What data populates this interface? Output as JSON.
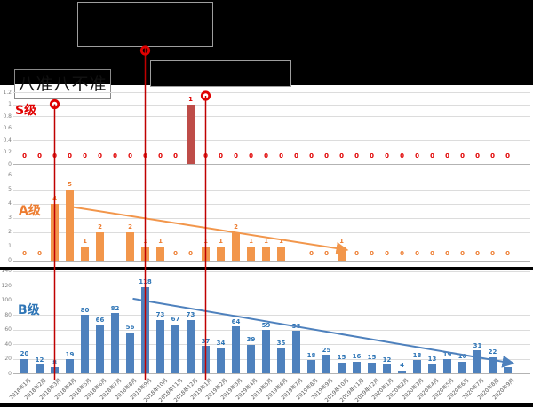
{
  "title_box": {
    "text": "八准八不准"
  },
  "annotations": {
    "callout_boxes": [
      {
        "id": "top-callout",
        "text": ""
      },
      {
        "id": "middle-callout",
        "text": ""
      }
    ],
    "marker_lines": [
      {
        "at": "2018年3月"
      },
      {
        "at": "2018年9月"
      },
      {
        "at": "2019年1月"
      }
    ]
  },
  "colors": {
    "s_bar": "#be4c48",
    "s_accent": "#e00000",
    "a_bar": "#f2964b",
    "a_label": "#ed7d31",
    "b_bar": "#4e81bd",
    "b_label": "#2e75b6",
    "marker_red": "#c00000",
    "grid": "#dcdcdc"
  },
  "chart_data": {
    "type": "bar",
    "categories": [
      "2018年1月",
      "2018年2月",
      "2018年3月",
      "2018年4月",
      "2018年5月",
      "2018年6月",
      "2018年7月",
      "2018年8月",
      "2018年9月",
      "2018年10月",
      "2018年11月",
      "2018年12月",
      "2019年1月",
      "2019年2月",
      "2019年3月",
      "2019年4月",
      "2019年5月",
      "2019年6月",
      "2019年7月",
      "2019年8月",
      "2019年9月",
      "2019年10月",
      "2019年11月",
      "2019年12月",
      "2020年1月",
      "2020年2月",
      "2020年3月",
      "2020年4月",
      "2020年5月",
      "2020年6月",
      "2020年7月",
      "2020年8月",
      "2020年9月"
    ],
    "charts": [
      {
        "id": "S",
        "label": "S级",
        "ylim": [
          0,
          1.2
        ],
        "yticks": [
          "1.2",
          "1",
          "0.8",
          "0.6",
          "0.4",
          "0.2",
          "0"
        ],
        "values": [
          0,
          0,
          0,
          0,
          0,
          0,
          0,
          0,
          0,
          0,
          0,
          1,
          0,
          0,
          0,
          0,
          0,
          0,
          0,
          0,
          0,
          0,
          0,
          0,
          0,
          0,
          0,
          0,
          0,
          0,
          0,
          0,
          0
        ],
        "value_labels": [
          "0",
          "0",
          "0",
          "0",
          "0",
          "0",
          "0",
          "0",
          "0",
          "0",
          "0",
          "1",
          "0",
          "0",
          "0",
          "0",
          "0",
          "0",
          "0",
          "0",
          "0",
          "0",
          "0",
          "0",
          "0",
          "0",
          "0",
          "0",
          "0",
          "0",
          "0",
          "0",
          "0"
        ]
      },
      {
        "id": "A",
        "label": "A级",
        "ylim": [
          0,
          6
        ],
        "yticks": [
          "6",
          "5",
          "4",
          "3",
          "2",
          "1",
          "0"
        ],
        "values": [
          0,
          0,
          4,
          5,
          1,
          2,
          null,
          2,
          1,
          1,
          0,
          0,
          1,
          1,
          2,
          1,
          1,
          1,
          null,
          0,
          0,
          1,
          0,
          0,
          0,
          0,
          0,
          0,
          0,
          0,
          0,
          0,
          0
        ],
        "value_labels": [
          "0",
          "0",
          "4",
          "5",
          "1",
          "2",
          "",
          "2",
          "1",
          "1",
          "0",
          "0",
          "1",
          "1",
          "2",
          "1",
          "1",
          "1",
          "",
          "0",
          "0",
          "1",
          "0",
          "0",
          "0",
          "0",
          "0",
          "0",
          "0",
          "0",
          "0",
          "0",
          "0"
        ],
        "trendline": {
          "x1_index": 3,
          "y1_value": 3.75,
          "x2_index": 21,
          "y2_value": 0.75
        }
      },
      {
        "id": "B",
        "label": "B级",
        "ylim": [
          0,
          140
        ],
        "yticks": [
          "140",
          "120",
          "100",
          "80",
          "60",
          "40",
          "20",
          "0"
        ],
        "values": [
          20,
          12,
          8,
          19,
          80,
          66,
          82,
          56,
          118,
          73,
          67,
          73,
          37,
          34,
          64,
          39,
          59,
          35,
          58,
          18,
          25,
          15,
          16,
          15,
          12,
          4,
          18,
          13,
          19,
          16,
          31,
          22,
          8
        ],
        "value_labels": [
          "20",
          "12",
          "8",
          "19",
          "80",
          "66",
          "82",
          "56",
          "118",
          "73",
          "67",
          "73",
          "37",
          "34",
          "64",
          "39",
          "59",
          "35",
          "58",
          "18",
          "25",
          "15",
          "16",
          "15",
          "12",
          "4",
          "18",
          "13",
          "19",
          "16",
          "31",
          "22",
          ""
        ],
        "trendline": {
          "x1_index": 7,
          "y1_value": 102,
          "x2_index": 32,
          "y2_value": 14
        }
      }
    ]
  }
}
